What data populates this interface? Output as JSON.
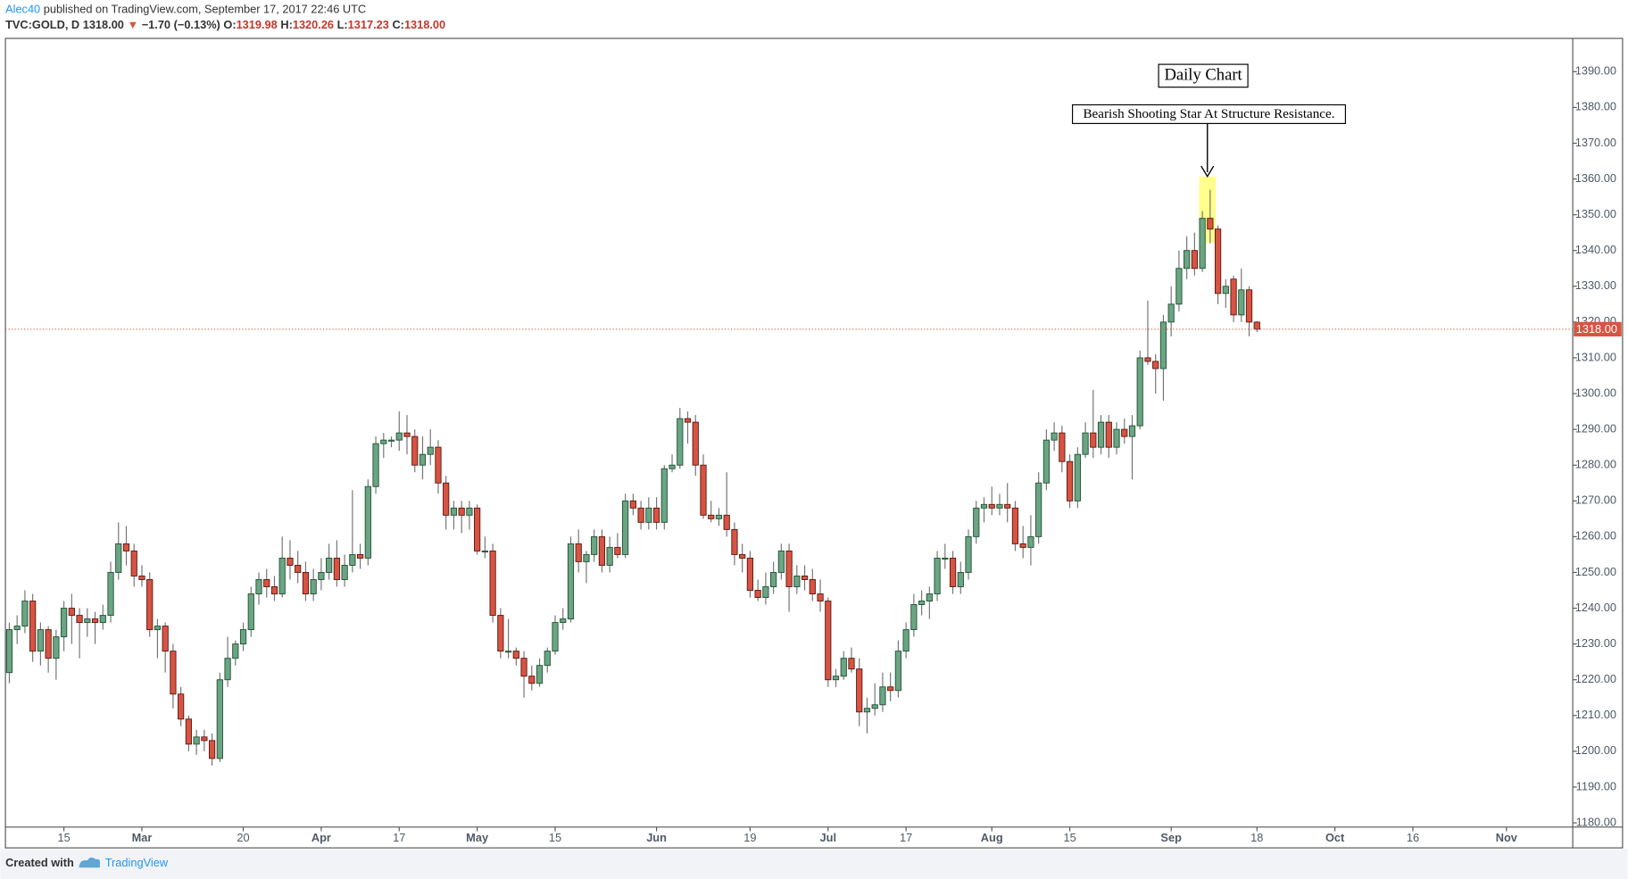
{
  "header": {
    "author": "Alec40",
    "published": "published on TradingView.com, September 17, 2017 22:46 UTC",
    "symbol": "TVC:GOLD, D",
    "last": "1318.00",
    "arrow": "▼",
    "change": "−1.70 (−0.13%)",
    "ohlc": [
      {
        "label": "O:",
        "value": "1319.98"
      },
      {
        "label": "H:",
        "value": "1320.26"
      },
      {
        "label": "L:",
        "value": "1317.23"
      },
      {
        "label": "C:",
        "value": "1318.00"
      }
    ]
  },
  "footer": {
    "created": "Created with",
    "brand": "TradingView"
  },
  "chart_data": {
    "type": "candlestick",
    "up_color": "#6ba583",
    "up_border": "#225437",
    "down_color": "#d75442",
    "down_border": "#5b1a13",
    "wick_color": "#737375",
    "grid": false,
    "annotations": [
      "Daily Chart",
      "Bearish Shooting Star At Structure Resistance."
    ],
    "last_price": {
      "value": 1318.0,
      "label": "1318.00"
    },
    "ylim": [
      1178.8,
      1399.3
    ],
    "yticks": [
      {
        "value": 1180,
        "label": "1180.00"
      },
      {
        "value": 1190,
        "label": "1190.00"
      },
      {
        "value": 1200,
        "label": "1200.00"
      },
      {
        "value": 1210,
        "label": "1210.00"
      },
      {
        "value": 1220,
        "label": "1220.00"
      },
      {
        "value": 1230,
        "label": "1230.00"
      },
      {
        "value": 1240,
        "label": "1240.00"
      },
      {
        "value": 1250,
        "label": "1250.00"
      },
      {
        "value": 1260,
        "label": "1260.00"
      },
      {
        "value": 1270,
        "label": "1270.00"
      },
      {
        "value": 1280,
        "label": "1280.00"
      },
      {
        "value": 1290,
        "label": "1290.00"
      },
      {
        "value": 1300,
        "label": "1300.00"
      },
      {
        "value": 1310,
        "label": "1310.00"
      },
      {
        "value": 1320,
        "label": "1320.00"
      },
      {
        "value": 1330,
        "label": "1330.00"
      },
      {
        "value": 1340,
        "label": "1340.00"
      },
      {
        "value": 1350,
        "label": "1350.00"
      },
      {
        "value": 1360,
        "label": "1360.00"
      },
      {
        "value": 1370,
        "label": "1370.00"
      },
      {
        "value": 1380,
        "label": "1380.00"
      },
      {
        "value": 1390,
        "label": "1390.00"
      }
    ],
    "xlim": [
      "2017-02-06",
      "2017-11-13"
    ],
    "xticks": [
      {
        "value": "2017-02-15",
        "label": "15"
      },
      {
        "value": "2017-03-01",
        "label": "Mar"
      },
      {
        "value": "2017-03-20",
        "label": "20"
      },
      {
        "value": "2017-04-03",
        "label": "Apr"
      },
      {
        "value": "2017-04-17",
        "label": "17"
      },
      {
        "value": "2017-05-01",
        "label": "May"
      },
      {
        "value": "2017-05-15",
        "label": "15"
      },
      {
        "value": "2017-06-01",
        "label": "Jun"
      },
      {
        "value": "2017-06-19",
        "label": "19"
      },
      {
        "value": "2017-07-03",
        "label": "Jul"
      },
      {
        "value": "2017-07-17",
        "label": "17"
      },
      {
        "value": "2017-08-01",
        "label": "Aug"
      },
      {
        "value": "2017-08-15",
        "label": "15"
      },
      {
        "value": "2017-09-01",
        "label": "Sep"
      },
      {
        "value": "2017-09-18",
        "label": "18"
      },
      {
        "value": "2017-10-02",
        "label": "Oct"
      },
      {
        "value": "2017-10-16",
        "label": "16"
      },
      {
        "value": "2017-11-01",
        "label": "Nov"
      }
    ],
    "dates": [
      "2017-02-06",
      "2017-02-07",
      "2017-02-08",
      "2017-02-09",
      "2017-02-10",
      "2017-02-13",
      "2017-02-14",
      "2017-02-15",
      "2017-02-16",
      "2017-02-17",
      "2017-02-20",
      "2017-02-21",
      "2017-02-22",
      "2017-02-23",
      "2017-02-24",
      "2017-02-27",
      "2017-02-28",
      "2017-03-01",
      "2017-03-02",
      "2017-03-03",
      "2017-03-06",
      "2017-03-07",
      "2017-03-08",
      "2017-03-09",
      "2017-03-10",
      "2017-03-13",
      "2017-03-14",
      "2017-03-15",
      "2017-03-16",
      "2017-03-17",
      "2017-03-20",
      "2017-03-21",
      "2017-03-22",
      "2017-03-23",
      "2017-03-24",
      "2017-03-27",
      "2017-03-28",
      "2017-03-29",
      "2017-03-30",
      "2017-03-31",
      "2017-04-03",
      "2017-04-04",
      "2017-04-05",
      "2017-04-06",
      "2017-04-07",
      "2017-04-10",
      "2017-04-11",
      "2017-04-12",
      "2017-04-13",
      "2017-04-14",
      "2017-04-17",
      "2017-04-18",
      "2017-04-19",
      "2017-04-20",
      "2017-04-21",
      "2017-04-24",
      "2017-04-25",
      "2017-04-26",
      "2017-04-27",
      "2017-04-28",
      "2017-05-01",
      "2017-05-02",
      "2017-05-03",
      "2017-05-04",
      "2017-05-05",
      "2017-05-08",
      "2017-05-09",
      "2017-05-10",
      "2017-05-11",
      "2017-05-12",
      "2017-05-15",
      "2017-05-16",
      "2017-05-17",
      "2017-05-18",
      "2017-05-19",
      "2017-05-22",
      "2017-05-23",
      "2017-05-24",
      "2017-05-25",
      "2017-05-26",
      "2017-05-29",
      "2017-05-30",
      "2017-05-31",
      "2017-06-01",
      "2017-06-02",
      "2017-06-05",
      "2017-06-06",
      "2017-06-07",
      "2017-06-08",
      "2017-06-09",
      "2017-06-12",
      "2017-06-13",
      "2017-06-14",
      "2017-06-15",
      "2017-06-16",
      "2017-06-19",
      "2017-06-20",
      "2017-06-21",
      "2017-06-22",
      "2017-06-23",
      "2017-06-26",
      "2017-06-27",
      "2017-06-28",
      "2017-06-29",
      "2017-06-30",
      "2017-07-03",
      "2017-07-04",
      "2017-07-05",
      "2017-07-06",
      "2017-07-07",
      "2017-07-10",
      "2017-07-11",
      "2017-07-12",
      "2017-07-13",
      "2017-07-14",
      "2017-07-17",
      "2017-07-18",
      "2017-07-19",
      "2017-07-20",
      "2017-07-21",
      "2017-07-24",
      "2017-07-25",
      "2017-07-26",
      "2017-07-27",
      "2017-07-28",
      "2017-07-31",
      "2017-08-01",
      "2017-08-02",
      "2017-08-03",
      "2017-08-04",
      "2017-08-07",
      "2017-08-08",
      "2017-08-09",
      "2017-08-10",
      "2017-08-11",
      "2017-08-14",
      "2017-08-15",
      "2017-08-16",
      "2017-08-17",
      "2017-08-18",
      "2017-08-21",
      "2017-08-22",
      "2017-08-23",
      "2017-08-24",
      "2017-08-25",
      "2017-08-28",
      "2017-08-29",
      "2017-08-30",
      "2017-08-31",
      "2017-09-01",
      "2017-09-04",
      "2017-09-05",
      "2017-09-06",
      "2017-09-07",
      "2017-09-08",
      "2017-09-11",
      "2017-09-12",
      "2017-09-13",
      "2017-09-14",
      "2017-09-15",
      "2017-09-18"
    ],
    "open": [
      1222,
      1234,
      1235,
      1242,
      1228,
      1234,
      1226,
      1232,
      1240,
      1238,
      1236,
      1237,
      1236,
      1238,
      1250,
      1258,
      1256,
      1249,
      1248,
      1234,
      1235,
      1228,
      1216,
      1209,
      1202,
      1204,
      1203,
      1198,
      1220,
      1226,
      1230,
      1234,
      1244,
      1248,
      1246,
      1244,
      1254,
      1252,
      1250,
      1244,
      1248,
      1250,
      1254,
      1248,
      1252,
      1255,
      1254,
      1274,
      1286,
      1287,
      1287,
      1289,
      1288,
      1280,
      1283,
      1285,
      1275,
      1266,
      1268,
      1266,
      1268,
      1256,
      1256,
      1238,
      1228,
      1228,
      1226,
      1221,
      1219,
      1224,
      1228,
      1236,
      1237,
      1258,
      1253,
      1255,
      1260,
      1252,
      1257,
      1255,
      1270,
      1268,
      1264,
      1268,
      1264,
      1279,
      1280,
      1293,
      1292,
      1280,
      1266,
      1265,
      1266,
      1262,
      1255,
      1254,
      1245,
      1243,
      1246,
      1250,
      1256,
      1246,
      1249,
      1248,
      1244,
      1242,
      1220,
      1221,
      1226,
      1223,
      1211,
      1212,
      1213,
      1218,
      1217,
      1228,
      1234,
      1241,
      1242,
      1244,
      1254,
      1254,
      1246,
      1250,
      1260,
      1268,
      1269,
      1268,
      1269,
      1268,
      1258,
      1257,
      1260,
      1275,
      1287,
      1289,
      1281,
      1270,
      1283,
      1289,
      1285,
      1292,
      1285,
      1290,
      1288,
      1291,
      1310,
      1309,
      1307,
      1320,
      1325,
      1335,
      1340,
      1335,
      1349,
      1346,
      1328,
      1332,
      1322,
      1329,
      1319.98
    ],
    "high": [
      1236,
      1238,
      1245,
      1244,
      1236,
      1235,
      1234,
      1242,
      1244,
      1240,
      1240,
      1239,
      1241,
      1253,
      1264,
      1263,
      1258,
      1252,
      1250,
      1237,
      1236,
      1230,
      1218,
      1210,
      1206,
      1206,
      1205,
      1222,
      1232,
      1231,
      1236,
      1246,
      1250,
      1251,
      1249,
      1260,
      1259,
      1256,
      1253,
      1251,
      1254,
      1258,
      1259,
      1255,
      1273,
      1258,
      1276,
      1288,
      1289,
      1288,
      1295,
      1294,
      1290,
      1288,
      1290,
      1287,
      1277,
      1270,
      1270,
      1270,
      1269,
      1260,
      1258,
      1240,
      1237,
      1229,
      1228,
      1224,
      1226,
      1229,
      1238,
      1240,
      1260,
      1262,
      1256,
      1262,
      1262,
      1260,
      1261,
      1272,
      1272,
      1270,
      1271,
      1271,
      1280,
      1283,
      1296,
      1295,
      1294,
      1283,
      1270,
      1268,
      1278,
      1264,
      1258,
      1256,
      1248,
      1250,
      1253,
      1258,
      1258,
      1252,
      1252,
      1251,
      1248,
      1243,
      1223,
      1228,
      1229,
      1226,
      1215,
      1219,
      1222,
      1222,
      1231,
      1236,
      1244,
      1245,
      1246,
      1256,
      1258,
      1256,
      1253,
      1262,
      1270,
      1271,
      1274,
      1272,
      1275,
      1270,
      1263,
      1266,
      1278,
      1290,
      1292,
      1291,
      1283,
      1285,
      1292,
      1301,
      1294,
      1294,
      1292,
      1293,
      1294,
      1312,
      1326,
      1311,
      1322,
      1330,
      1340,
      1344,
      1345,
      1351,
      1357,
      1347,
      1332,
      1333,
      1335,
      1330,
      1320.26
    ],
    "low": [
      1219,
      1230,
      1233,
      1225,
      1224,
      1222,
      1220,
      1228,
      1230,
      1226,
      1232,
      1230,
      1234,
      1236,
      1248,
      1252,
      1246,
      1246,
      1232,
      1226,
      1222,
      1212,
      1207,
      1200,
      1199,
      1200,
      1196,
      1197,
      1218,
      1224,
      1228,
      1232,
      1241,
      1243,
      1242,
      1243,
      1248,
      1247,
      1242,
      1242,
      1245,
      1248,
      1246,
      1246,
      1250,
      1251,
      1252,
      1272,
      1282,
      1285,
      1284,
      1283,
      1278,
      1276,
      1280,
      1272,
      1262,
      1262,
      1261,
      1262,
      1255,
      1254,
      1236,
      1226,
      1226,
      1224,
      1215,
      1217,
      1218,
      1222,
      1227,
      1234,
      1236,
      1250,
      1247,
      1253,
      1250,
      1250,
      1254,
      1254,
      1266,
      1262,
      1262,
      1262,
      1262,
      1278,
      1279,
      1286,
      1277,
      1265,
      1264,
      1263,
      1260,
      1252,
      1250,
      1243,
      1242,
      1241,
      1244,
      1248,
      1239,
      1244,
      1245,
      1242,
      1239,
      1218,
      1218,
      1220,
      1222,
      1207,
      1205,
      1210,
      1211,
      1214,
      1215,
      1226,
      1232,
      1238,
      1237,
      1242,
      1251,
      1244,
      1244,
      1248,
      1258,
      1264,
      1266,
      1266,
      1264,
      1256,
      1254,
      1252,
      1258,
      1273,
      1284,
      1278,
      1268,
      1268,
      1282,
      1282,
      1283,
      1282,
      1283,
      1286,
      1276,
      1290,
      1308,
      1300,
      1298,
      1316,
      1323,
      1332,
      1333,
      1334,
      1342,
      1325,
      1324,
      1320,
      1320,
      1316,
      1317.23
    ],
    "close": [
      1234,
      1235,
      1242,
      1228,
      1234,
      1226,
      1232,
      1240,
      1238,
      1236,
      1237,
      1236,
      1238,
      1250,
      1258,
      1256,
      1249,
      1248,
      1234,
      1235,
      1228,
      1216,
      1209,
      1202,
      1204,
      1203,
      1198,
      1220,
      1226,
      1230,
      1234,
      1244,
      1248,
      1246,
      1244,
      1254,
      1252,
      1250,
      1244,
      1248,
      1250,
      1254,
      1248,
      1252,
      1255,
      1254,
      1274,
      1286,
      1287,
      1287,
      1289,
      1288,
      1280,
      1283,
      1285,
      1275,
      1266,
      1268,
      1266,
      1268,
      1256,
      1256,
      1238,
      1228,
      1228,
      1226,
      1221,
      1219,
      1224,
      1228,
      1236,
      1237,
      1258,
      1253,
      1255,
      1260,
      1252,
      1257,
      1255,
      1270,
      1268,
      1264,
      1268,
      1264,
      1279,
      1280,
      1293,
      1292,
      1280,
      1266,
      1265,
      1266,
      1262,
      1255,
      1254,
      1245,
      1243,
      1246,
      1250,
      1256,
      1246,
      1249,
      1248,
      1244,
      1242,
      1220,
      1221,
      1226,
      1223,
      1211,
      1212,
      1213,
      1218,
      1217,
      1228,
      1234,
      1241,
      1242,
      1244,
      1254,
      1254,
      1246,
      1250,
      1260,
      1268,
      1269,
      1268,
      1269,
      1268,
      1258,
      1257,
      1260,
      1275,
      1287,
      1289,
      1281,
      1270,
      1283,
      1289,
      1285,
      1292,
      1285,
      1290,
      1288,
      1291,
      1310,
      1309,
      1307,
      1320,
      1325,
      1335,
      1340,
      1335,
      1349,
      1346,
      1328,
      1330,
      1322,
      1329,
      1320,
      1318.0
    ]
  }
}
